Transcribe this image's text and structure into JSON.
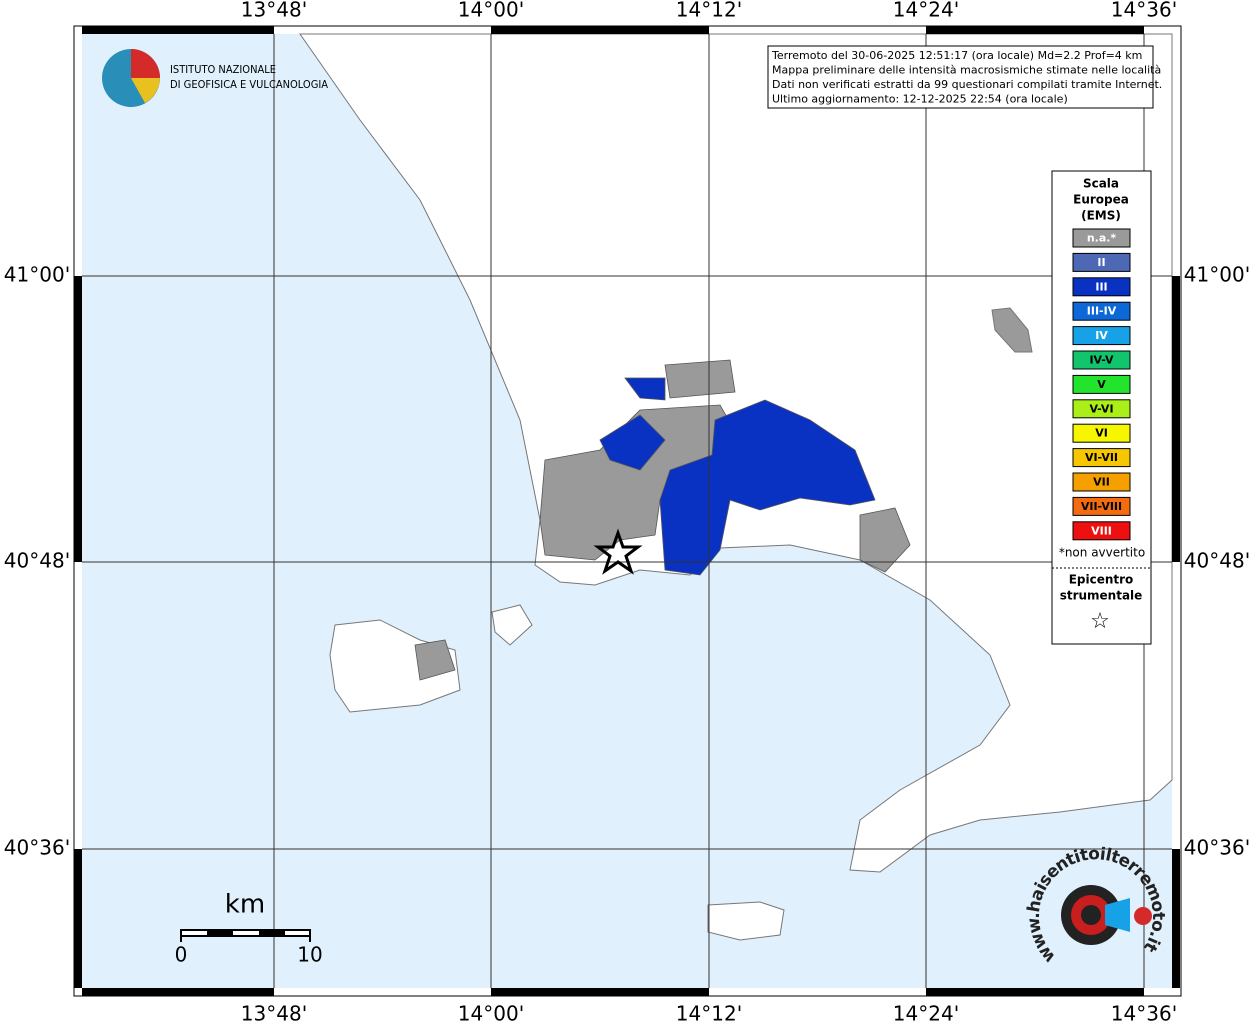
{
  "map": {
    "lon_labels": [
      "13°48'",
      "14°00'",
      "14°12'",
      "14°24'",
      "14°36'"
    ],
    "lat_labels": [
      "41°00'",
      "40°48'",
      "40°36'"
    ]
  },
  "logo": {
    "lines": [
      "ISTITUTO NAZIONALE",
      "DI GEOFISICA E VULCANOLOGIA"
    ]
  },
  "info": {
    "lines": [
      "Terremoto del 30-06-2025 12:51:17 (ora locale) Md=2.2 Prof=4 km",
      "Mappa preliminare delle intensità macrosismiche stimate nelle località",
      "Dati non verificati estratti da 99 questionari compilati tramite Internet.",
      "Ultimo aggiornamento: 12-12-2025 22:54 (ora locale)"
    ]
  },
  "legend": {
    "title_lines": [
      "Scala",
      "Europea",
      "(EMS)"
    ],
    "items": [
      {
        "label": "n.a.*",
        "color": "#9a9a9a",
        "text_color": "#ffffff"
      },
      {
        "label": "II",
        "color": "#4d68b4",
        "text_color": "#ffffff"
      },
      {
        "label": "III",
        "color": "#0a32c2",
        "text_color": "#ffffff"
      },
      {
        "label": "III-IV",
        "color": "#0b68d6",
        "text_color": "#ffffff"
      },
      {
        "label": "IV",
        "color": "#17a2e8",
        "text_color": "#ffffff"
      },
      {
        "label": "IV-V",
        "color": "#12c46c",
        "text_color": "#000000"
      },
      {
        "label": "V",
        "color": "#22e42c",
        "text_color": "#000000"
      },
      {
        "label": "V-VI",
        "color": "#aaf018",
        "text_color": "#000000"
      },
      {
        "label": "VI",
        "color": "#f6f600",
        "text_color": "#000000"
      },
      {
        "label": "VI-VII",
        "color": "#f6c600",
        "text_color": "#000000"
      },
      {
        "label": "VII",
        "color": "#f6a000",
        "text_color": "#000000"
      },
      {
        "label": "VII-VIII",
        "color": "#f46c10",
        "text_color": "#000000"
      },
      {
        "label": "VIII",
        "color": "#ee1010",
        "text_color": "#ffffff"
      }
    ],
    "footnote": "*non avvertito",
    "epicenter_lines": [
      "Epicentro",
      "strumentale"
    ],
    "epicenter_symbol": "☆"
  },
  "scale_bar": {
    "unit": "km",
    "labels": [
      0,
      10
    ]
  },
  "badge": {
    "text": "www.haisentitoilterremoto.it"
  }
}
